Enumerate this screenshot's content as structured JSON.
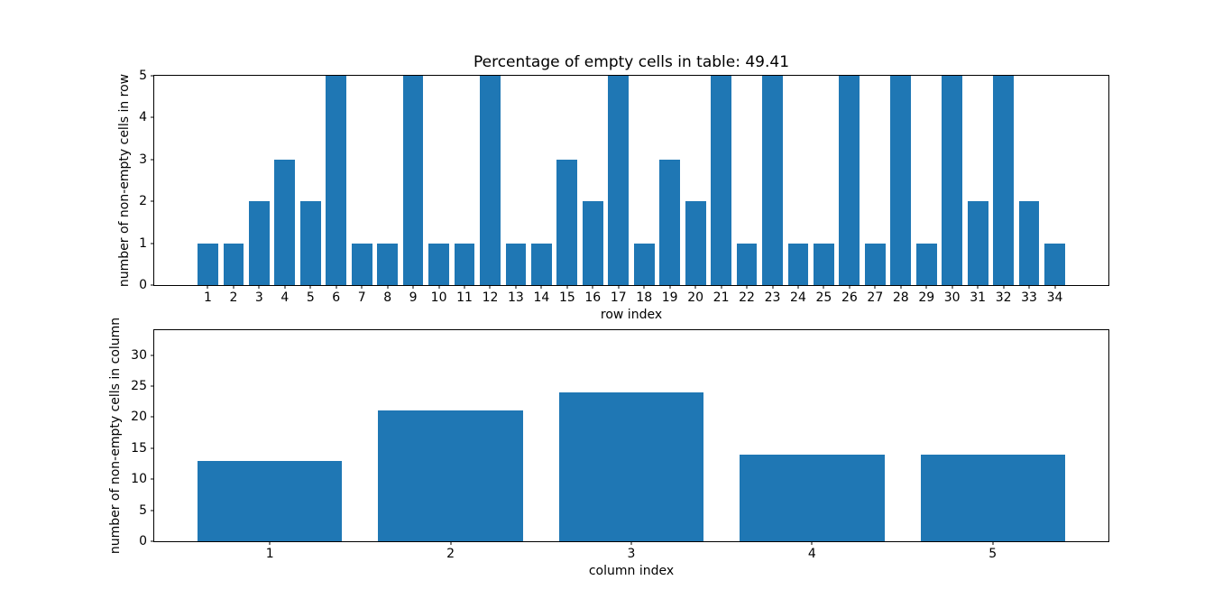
{
  "figure": {
    "background_color": "#ffffff",
    "bar_color": "#1f77b4",
    "text_color": "#000000",
    "spine_color": "#000000"
  },
  "chart_data": [
    {
      "type": "bar",
      "title": "Percentage of empty cells in table: 49.41",
      "xlabel": "row index",
      "ylabel": "number of non-empty cells in row",
      "categories": [
        1,
        2,
        3,
        4,
        5,
        6,
        7,
        8,
        9,
        10,
        11,
        12,
        13,
        14,
        15,
        16,
        17,
        18,
        19,
        20,
        21,
        22,
        23,
        24,
        25,
        26,
        27,
        28,
        29,
        30,
        31,
        32,
        33,
        34
      ],
      "values": [
        1,
        1,
        2,
        3,
        2,
        5,
        1,
        1,
        5,
        1,
        1,
        5,
        1,
        1,
        3,
        2,
        5,
        1,
        3,
        2,
        5,
        1,
        5,
        1,
        1,
        5,
        1,
        5,
        1,
        5,
        2,
        5,
        2,
        1
      ],
      "ylim": [
        0,
        5
      ],
      "yticks": [
        0,
        1,
        2,
        3,
        4,
        5
      ],
      "xlim": [
        -1.09,
        36.09
      ],
      "bar_width": 0.8,
      "grid": false,
      "legend": null
    },
    {
      "type": "bar",
      "title": "",
      "xlabel": "column index",
      "ylabel": "number of non-empty cells in column",
      "categories": [
        1,
        2,
        3,
        4,
        5
      ],
      "values": [
        13,
        21,
        24,
        14,
        14
      ],
      "ylim": [
        0,
        34
      ],
      "yticks": [
        0,
        5,
        10,
        15,
        20,
        25,
        30
      ],
      "xlim": [
        0.36,
        5.64
      ],
      "bar_width": 0.8,
      "grid": false,
      "legend": null
    }
  ]
}
